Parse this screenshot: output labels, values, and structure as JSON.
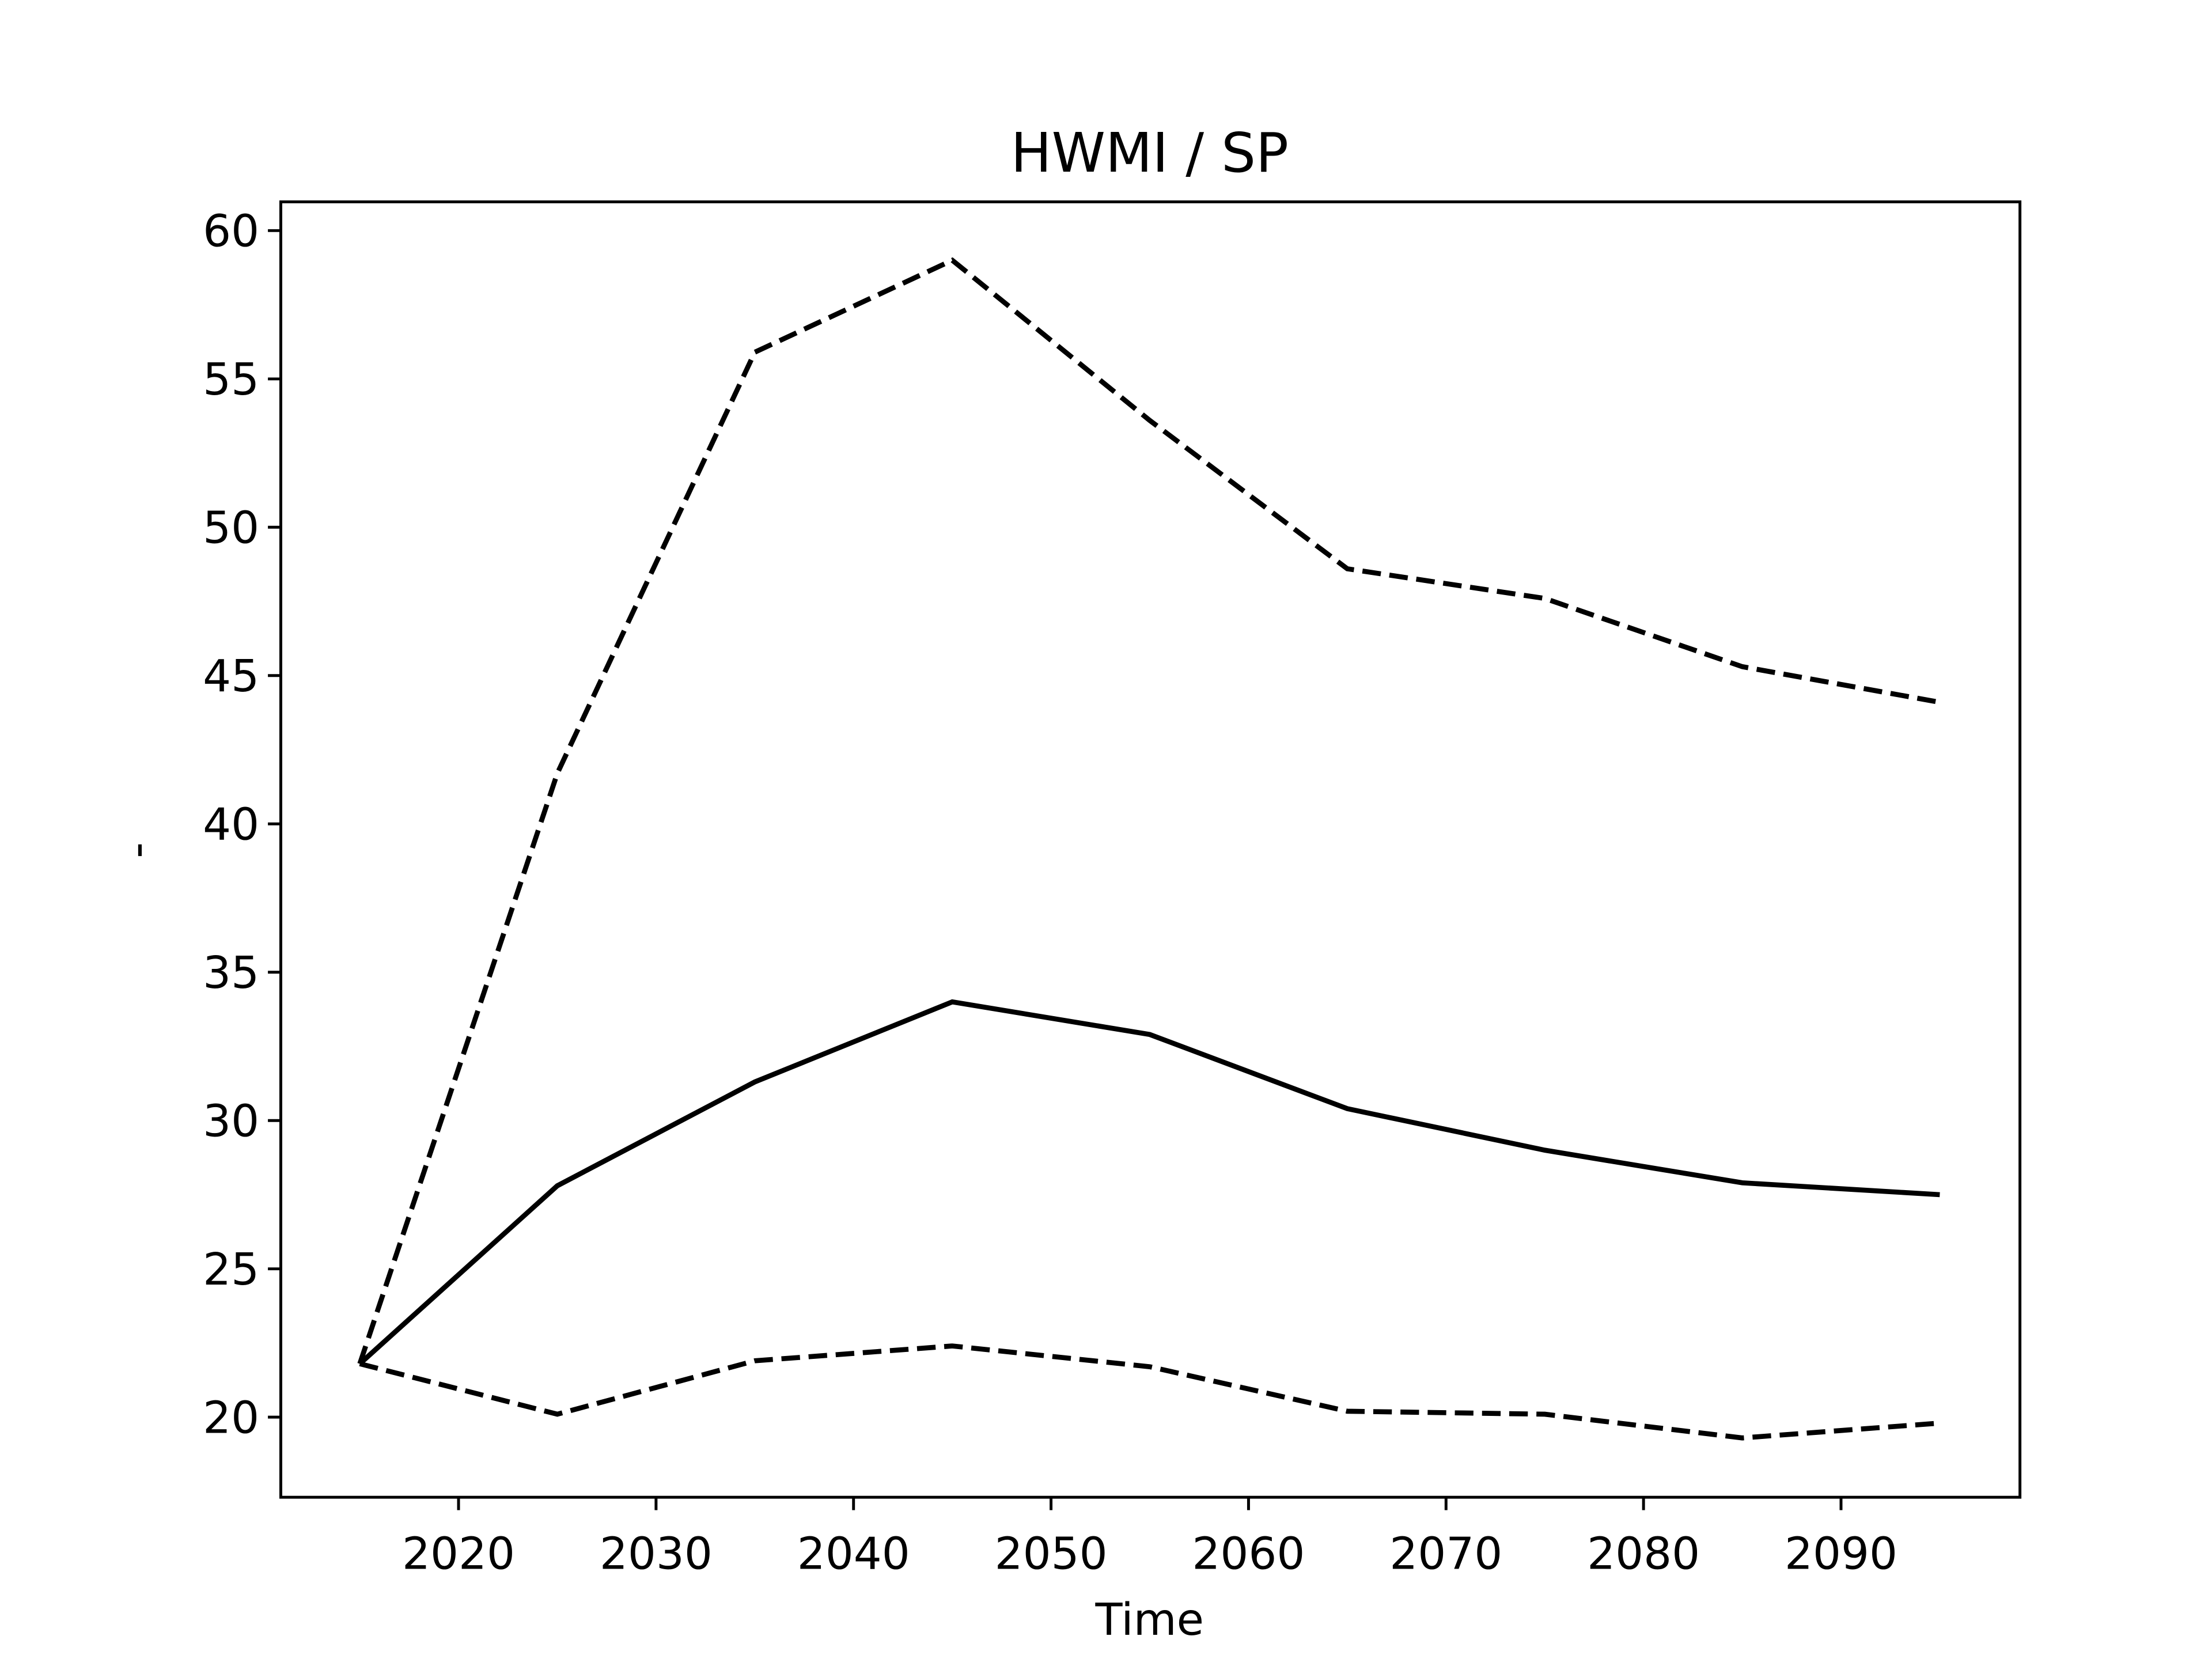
{
  "chart_data": {
    "type": "line",
    "title": "HWMI / SP",
    "x_label": "Time",
    "y_label": "-",
    "x": [
      2015,
      2025,
      2035,
      2045,
      2055,
      2065,
      2075,
      2085,
      2095
    ],
    "series": [
      {
        "color": "#000000",
        "linestyle": "solid",
        "values": [
          21.8,
          27.8,
          31.3,
          34.0,
          32.9,
          30.4,
          29.0,
          27.9,
          27.5
        ]
      },
      {
        "color": "#000000",
        "linestyle": "dashed",
        "values": [
          21.8,
          41.7,
          55.9,
          59.0,
          53.6,
          48.6,
          47.6,
          45.3,
          44.1
        ]
      },
      {
        "color": "#000000",
        "linestyle": "dashed",
        "values": [
          21.8,
          20.1,
          21.9,
          22.4,
          21.7,
          20.2,
          20.1,
          19.3,
          19.8
        ]
      }
    ],
    "xlim": [
      2011.0,
      2099.06
    ],
    "ylim": [
      17.3,
      60.97
    ],
    "xticks": [
      2020,
      2030,
      2040,
      2050,
      2060,
      2070,
      2080,
      2090
    ],
    "yticks": [
      20,
      25,
      30,
      35,
      40,
      45,
      50,
      55,
      60
    ],
    "grid": false
  }
}
